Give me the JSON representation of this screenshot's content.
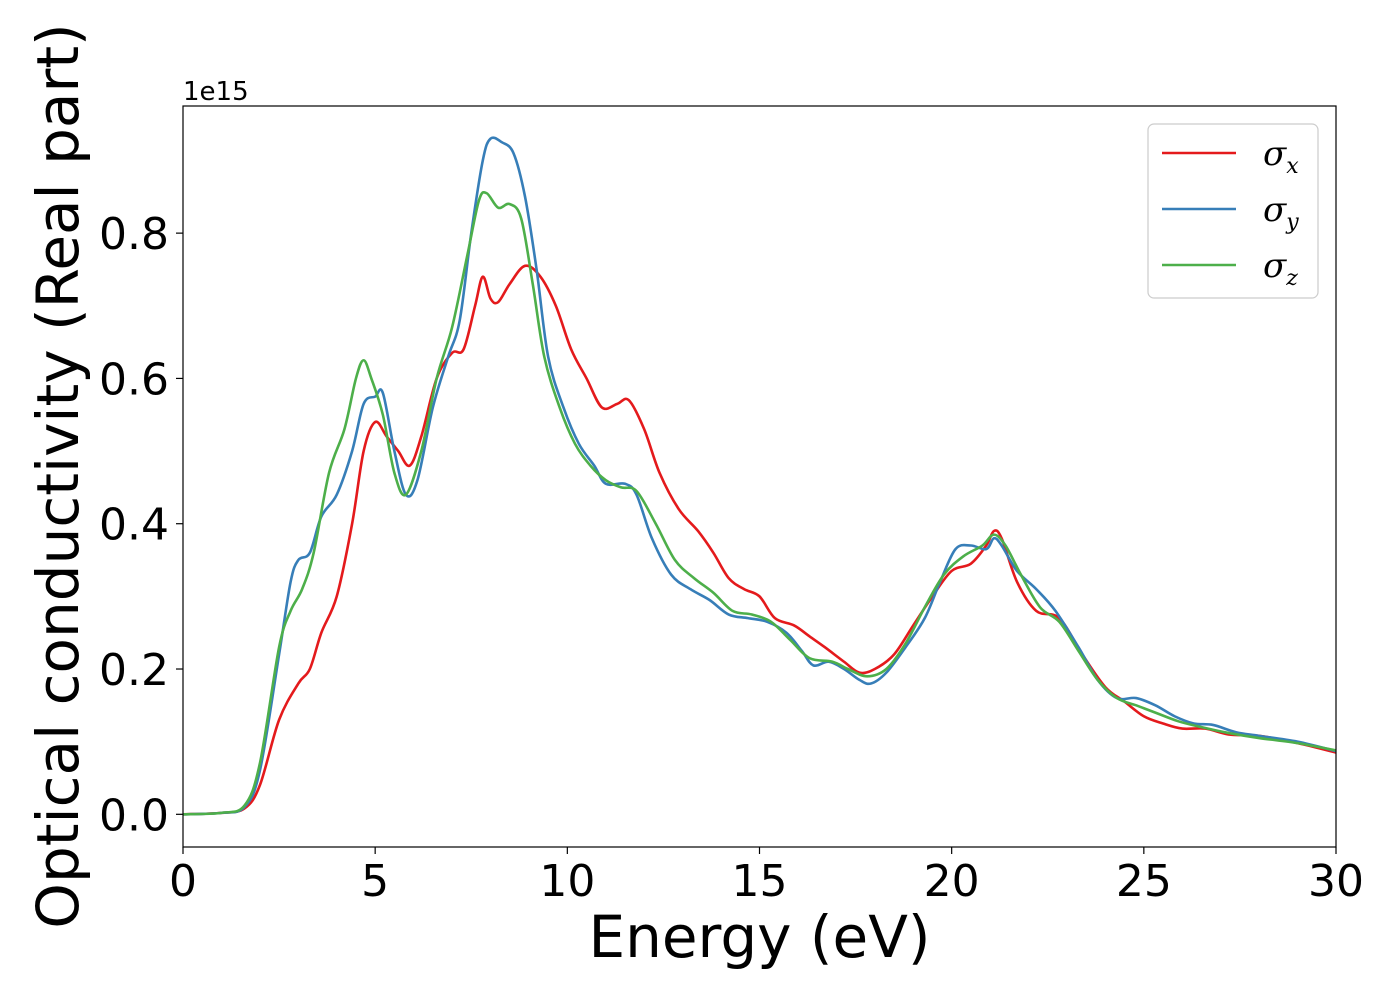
{
  "chart_data": {
    "type": "line",
    "xlabel": "Energy (eV)",
    "ylabel": "Optical conductivity (Real part)",
    "y_offset_text": "1e15",
    "y_scale": 1000000000000000.0,
    "xlim": [
      0,
      30
    ],
    "ylim": [
      -0.045,
      0.975
    ],
    "x_ticks": [
      0,
      5,
      10,
      15,
      20,
      25,
      30
    ],
    "x_tick_labels": [
      "0",
      "5",
      "10",
      "15",
      "20",
      "25",
      "30"
    ],
    "y_ticks": [
      0.0,
      0.2,
      0.4,
      0.6,
      0.8
    ],
    "y_tick_labels": [
      "0.0",
      "0.2",
      "0.4",
      "0.6",
      "0.8"
    ],
    "grid": false,
    "legend_position": "top-right",
    "series": [
      {
        "name": "σx",
        "symbol": "σ",
        "subscript": "x",
        "color": "#e41a1c",
        "points": [
          [
            0,
            0
          ],
          [
            1.0,
            0.002
          ],
          [
            1.6,
            0.008
          ],
          [
            2.0,
            0.04
          ],
          [
            2.5,
            0.13
          ],
          [
            3.0,
            0.18
          ],
          [
            3.3,
            0.2
          ],
          [
            3.6,
            0.25
          ],
          [
            4.0,
            0.3
          ],
          [
            4.4,
            0.4
          ],
          [
            4.7,
            0.5
          ],
          [
            5.0,
            0.54
          ],
          [
            5.3,
            0.52
          ],
          [
            5.6,
            0.5
          ],
          [
            5.9,
            0.48
          ],
          [
            6.2,
            0.52
          ],
          [
            6.6,
            0.6
          ],
          [
            7.0,
            0.635
          ],
          [
            7.3,
            0.64
          ],
          [
            7.6,
            0.7
          ],
          [
            7.8,
            0.74
          ],
          [
            8.0,
            0.71
          ],
          [
            8.2,
            0.705
          ],
          [
            8.5,
            0.73
          ],
          [
            8.9,
            0.755
          ],
          [
            9.3,
            0.74
          ],
          [
            9.7,
            0.7
          ],
          [
            10.1,
            0.64
          ],
          [
            10.5,
            0.6
          ],
          [
            10.9,
            0.56
          ],
          [
            11.3,
            0.565
          ],
          [
            11.6,
            0.57
          ],
          [
            12.0,
            0.53
          ],
          [
            12.4,
            0.47
          ],
          [
            12.9,
            0.42
          ],
          [
            13.4,
            0.39
          ],
          [
            13.8,
            0.36
          ],
          [
            14.2,
            0.325
          ],
          [
            14.6,
            0.31
          ],
          [
            15.0,
            0.3
          ],
          [
            15.4,
            0.27
          ],
          [
            15.9,
            0.26
          ],
          [
            16.3,
            0.245
          ],
          [
            16.7,
            0.23
          ],
          [
            17.2,
            0.21
          ],
          [
            17.6,
            0.195
          ],
          [
            18.0,
            0.2
          ],
          [
            18.5,
            0.22
          ],
          [
            19.0,
            0.26
          ],
          [
            19.5,
            0.3
          ],
          [
            20.0,
            0.335
          ],
          [
            20.5,
            0.345
          ],
          [
            20.9,
            0.37
          ],
          [
            21.1,
            0.39
          ],
          [
            21.3,
            0.38
          ],
          [
            21.7,
            0.32
          ],
          [
            22.2,
            0.28
          ],
          [
            22.8,
            0.27
          ],
          [
            23.4,
            0.22
          ],
          [
            24.0,
            0.175
          ],
          [
            24.5,
            0.155
          ],
          [
            25.0,
            0.135
          ],
          [
            25.5,
            0.125
          ],
          [
            26.0,
            0.118
          ],
          [
            26.6,
            0.118
          ],
          [
            27.2,
            0.11
          ],
          [
            28.0,
            0.108
          ],
          [
            29.0,
            0.098
          ],
          [
            30.0,
            0.085
          ]
        ]
      },
      {
        "name": "σy",
        "symbol": "σ",
        "subscript": "y",
        "color": "#377eb8",
        "points": [
          [
            0,
            0
          ],
          [
            1.0,
            0.002
          ],
          [
            1.6,
            0.01
          ],
          [
            2.0,
            0.06
          ],
          [
            2.5,
            0.22
          ],
          [
            2.8,
            0.32
          ],
          [
            3.0,
            0.35
          ],
          [
            3.3,
            0.36
          ],
          [
            3.6,
            0.41
          ],
          [
            4.0,
            0.44
          ],
          [
            4.4,
            0.5
          ],
          [
            4.7,
            0.565
          ],
          [
            5.0,
            0.575
          ],
          [
            5.2,
            0.58
          ],
          [
            5.5,
            0.5
          ],
          [
            5.8,
            0.44
          ],
          [
            6.1,
            0.46
          ],
          [
            6.5,
            0.56
          ],
          [
            6.9,
            0.63
          ],
          [
            7.2,
            0.68
          ],
          [
            7.5,
            0.8
          ],
          [
            7.8,
            0.9
          ],
          [
            8.0,
            0.93
          ],
          [
            8.3,
            0.925
          ],
          [
            8.6,
            0.91
          ],
          [
            8.9,
            0.85
          ],
          [
            9.2,
            0.75
          ],
          [
            9.5,
            0.63
          ],
          [
            9.9,
            0.56
          ],
          [
            10.3,
            0.51
          ],
          [
            10.7,
            0.48
          ],
          [
            11.0,
            0.455
          ],
          [
            11.5,
            0.455
          ],
          [
            11.8,
            0.44
          ],
          [
            12.2,
            0.38
          ],
          [
            12.7,
            0.33
          ],
          [
            13.2,
            0.31
          ],
          [
            13.7,
            0.295
          ],
          [
            14.2,
            0.275
          ],
          [
            14.7,
            0.27
          ],
          [
            15.2,
            0.265
          ],
          [
            15.7,
            0.25
          ],
          [
            16.1,
            0.225
          ],
          [
            16.4,
            0.205
          ],
          [
            16.8,
            0.21
          ],
          [
            17.2,
            0.2
          ],
          [
            17.6,
            0.185
          ],
          [
            17.9,
            0.18
          ],
          [
            18.3,
            0.195
          ],
          [
            18.8,
            0.23
          ],
          [
            19.3,
            0.27
          ],
          [
            19.7,
            0.32
          ],
          [
            20.1,
            0.365
          ],
          [
            20.5,
            0.37
          ],
          [
            20.9,
            0.365
          ],
          [
            21.1,
            0.38
          ],
          [
            21.3,
            0.37
          ],
          [
            21.7,
            0.335
          ],
          [
            22.2,
            0.31
          ],
          [
            22.7,
            0.28
          ],
          [
            23.3,
            0.23
          ],
          [
            23.8,
            0.185
          ],
          [
            24.3,
            0.16
          ],
          [
            24.8,
            0.16
          ],
          [
            25.3,
            0.15
          ],
          [
            25.8,
            0.135
          ],
          [
            26.3,
            0.125
          ],
          [
            26.8,
            0.123
          ],
          [
            27.4,
            0.113
          ],
          [
            28.0,
            0.108
          ],
          [
            29.0,
            0.1
          ],
          [
            30.0,
            0.087
          ]
        ]
      },
      {
        "name": "σz",
        "symbol": "σ",
        "subscript": "z",
        "color": "#4daf4a",
        "points": [
          [
            0,
            0
          ],
          [
            1.0,
            0.002
          ],
          [
            1.6,
            0.012
          ],
          [
            2.0,
            0.07
          ],
          [
            2.5,
            0.23
          ],
          [
            2.8,
            0.28
          ],
          [
            3.1,
            0.31
          ],
          [
            3.4,
            0.36
          ],
          [
            3.8,
            0.47
          ],
          [
            4.2,
            0.53
          ],
          [
            4.5,
            0.6
          ],
          [
            4.7,
            0.625
          ],
          [
            4.9,
            0.6
          ],
          [
            5.2,
            0.55
          ],
          [
            5.5,
            0.47
          ],
          [
            5.8,
            0.44
          ],
          [
            6.2,
            0.5
          ],
          [
            6.6,
            0.6
          ],
          [
            7.0,
            0.67
          ],
          [
            7.4,
            0.77
          ],
          [
            7.7,
            0.845
          ],
          [
            7.9,
            0.855
          ],
          [
            8.2,
            0.835
          ],
          [
            8.5,
            0.84
          ],
          [
            8.8,
            0.82
          ],
          [
            9.1,
            0.73
          ],
          [
            9.4,
            0.63
          ],
          [
            9.8,
            0.56
          ],
          [
            10.2,
            0.51
          ],
          [
            10.6,
            0.48
          ],
          [
            11.0,
            0.46
          ],
          [
            11.4,
            0.45
          ],
          [
            11.8,
            0.445
          ],
          [
            12.3,
            0.4
          ],
          [
            12.8,
            0.35
          ],
          [
            13.3,
            0.325
          ],
          [
            13.8,
            0.305
          ],
          [
            14.3,
            0.28
          ],
          [
            14.8,
            0.275
          ],
          [
            15.3,
            0.265
          ],
          [
            15.8,
            0.24
          ],
          [
            16.3,
            0.215
          ],
          [
            16.9,
            0.21
          ],
          [
            17.3,
            0.2
          ],
          [
            17.8,
            0.19
          ],
          [
            18.3,
            0.2
          ],
          [
            18.8,
            0.235
          ],
          [
            19.3,
            0.285
          ],
          [
            19.8,
            0.33
          ],
          [
            20.3,
            0.355
          ],
          [
            20.8,
            0.37
          ],
          [
            21.1,
            0.385
          ],
          [
            21.4,
            0.37
          ],
          [
            21.8,
            0.33
          ],
          [
            22.3,
            0.285
          ],
          [
            22.8,
            0.265
          ],
          [
            23.3,
            0.225
          ],
          [
            23.8,
            0.185
          ],
          [
            24.3,
            0.16
          ],
          [
            24.8,
            0.15
          ],
          [
            25.3,
            0.14
          ],
          [
            25.9,
            0.128
          ],
          [
            26.5,
            0.12
          ],
          [
            27.2,
            0.112
          ],
          [
            28.0,
            0.105
          ],
          [
            29.0,
            0.098
          ],
          [
            30.0,
            0.088
          ]
        ]
      }
    ]
  }
}
